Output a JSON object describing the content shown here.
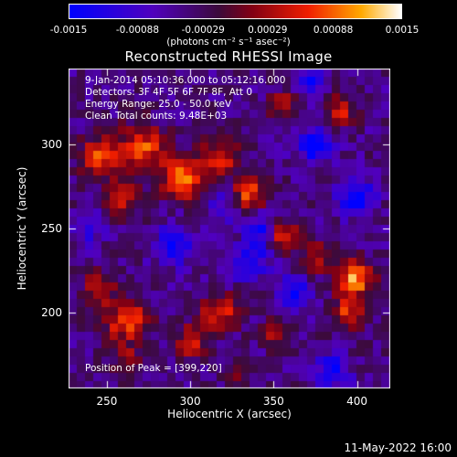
{
  "colorbar": {
    "ticks": [
      "-0.0015",
      "-0.00088",
      "-0.00029",
      "0.00029",
      "0.00088",
      "0.0015"
    ],
    "tick_values": [
      -0.0015,
      -0.00088,
      -0.00029,
      0.00029,
      0.00088,
      0.0015
    ],
    "range": [
      -0.0015,
      0.0015
    ],
    "units": "(photons cm⁻² s⁻¹ asec⁻²)"
  },
  "info_lines": [
    "9-Jan-2014 05:10:36.000 to 05:12:16.000",
    "Detectors: 3F 4F 5F 6F 7F 8F, Att 0",
    "Energy Range: 25.0 - 50.0 keV",
    "Clean     Total counts: 9.48E+03"
  ],
  "peak_text": "Position of Peak = [399,220]",
  "footer": "11-May-2022 16:00",
  "chart_data": {
    "type": "heatmap",
    "title": "Reconstructed RHESSI Image",
    "xlabel": "Heliocentric X (arcsec)",
    "ylabel": "Heliocentric Y (arcsec)",
    "xlim": [
      227,
      420
    ],
    "ylim": [
      155,
      345
    ],
    "x_ticks": [
      250,
      300,
      350,
      400
    ],
    "y_ticks": [
      200,
      250,
      300
    ],
    "colormap": "blue-purple-red-yellow-white",
    "value_range": [
      -0.0015,
      0.0015
    ],
    "peak": {
      "x": 399,
      "y": 220
    },
    "blobs": [
      {
        "x": 296,
        "y": 280,
        "value": 0.0014,
        "r": 12
      },
      {
        "x": 272,
        "y": 298,
        "value": 0.0012,
        "r": 14
      },
      {
        "x": 245,
        "y": 292,
        "value": 0.0011,
        "r": 12
      },
      {
        "x": 318,
        "y": 293,
        "value": 0.0011,
        "r": 10
      },
      {
        "x": 260,
        "y": 268,
        "value": 0.0009,
        "r": 11
      },
      {
        "x": 335,
        "y": 270,
        "value": 0.0012,
        "r": 10
      },
      {
        "x": 355,
        "y": 247,
        "value": 0.001,
        "r": 9
      },
      {
        "x": 375,
        "y": 233,
        "value": 0.0009,
        "r": 9
      },
      {
        "x": 399,
        "y": 220,
        "value": 0.0015,
        "r": 11
      },
      {
        "x": 395,
        "y": 200,
        "value": 0.001,
        "r": 9
      },
      {
        "x": 318,
        "y": 200,
        "value": 0.0011,
        "r": 11
      },
      {
        "x": 300,
        "y": 183,
        "value": 0.0009,
        "r": 10
      },
      {
        "x": 262,
        "y": 195,
        "value": 0.0012,
        "r": 13
      },
      {
        "x": 245,
        "y": 215,
        "value": 0.0008,
        "r": 10
      },
      {
        "x": 352,
        "y": 188,
        "value": 0.0008,
        "r": 8
      },
      {
        "x": 390,
        "y": 320,
        "value": 0.0009,
        "r": 9
      },
      {
        "x": 355,
        "y": 324,
        "value": 0.0007,
        "r": 8
      },
      {
        "x": 330,
        "y": 168,
        "value": 0.0006,
        "r": 8
      },
      {
        "x": 262,
        "y": 170,
        "value": 0.0007,
        "r": 9
      },
      {
        "x": 375,
        "y": 300,
        "value": -0.0012,
        "r": 10
      },
      {
        "x": 400,
        "y": 268,
        "value": -0.0013,
        "r": 10
      },
      {
        "x": 336,
        "y": 230,
        "value": -0.001,
        "r": 11
      },
      {
        "x": 363,
        "y": 212,
        "value": -0.0011,
        "r": 9
      },
      {
        "x": 342,
        "y": 250,
        "value": -0.0009,
        "r": 9
      },
      {
        "x": 385,
        "y": 165,
        "value": -0.001,
        "r": 10
      },
      {
        "x": 290,
        "y": 240,
        "value": -0.0008,
        "r": 12
      },
      {
        "x": 372,
        "y": 338,
        "value": -0.0011,
        "r": 8
      },
      {
        "x": 240,
        "y": 250,
        "value": -0.0006,
        "r": 9
      },
      {
        "x": 320,
        "y": 262,
        "value": -0.0007,
        "r": 9
      }
    ]
  }
}
